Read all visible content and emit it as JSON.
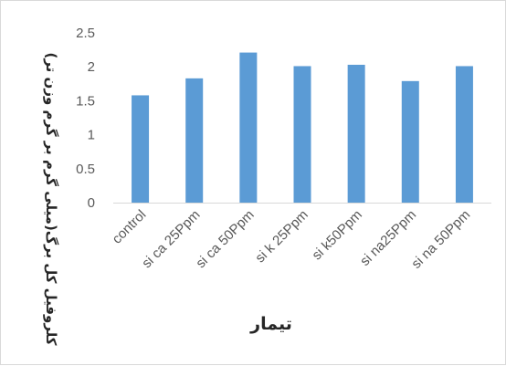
{
  "chart_data": {
    "type": "bar",
    "categories": [
      "control",
      "si ca 25Ppm",
      "si ca 50Ppm",
      "si k 25Ppm",
      "si k50Ppm",
      "si na25Ppm",
      "si na 50Ppm"
    ],
    "values": [
      1.58,
      1.83,
      2.21,
      2.01,
      2.03,
      1.79,
      2.01
    ],
    "title": "",
    "xlabel": "تیمار",
    "ylabel": "کلروفیل کل برگ(میلی گرم بر گرم وزن تر)",
    "ylim": [
      0,
      2.5
    ],
    "yticks": [
      "0",
      "0.5",
      "1",
      "1.5",
      "2",
      "2.5"
    ],
    "grid": false,
    "legend": "none",
    "bar_color": "#5b9bd5"
  }
}
